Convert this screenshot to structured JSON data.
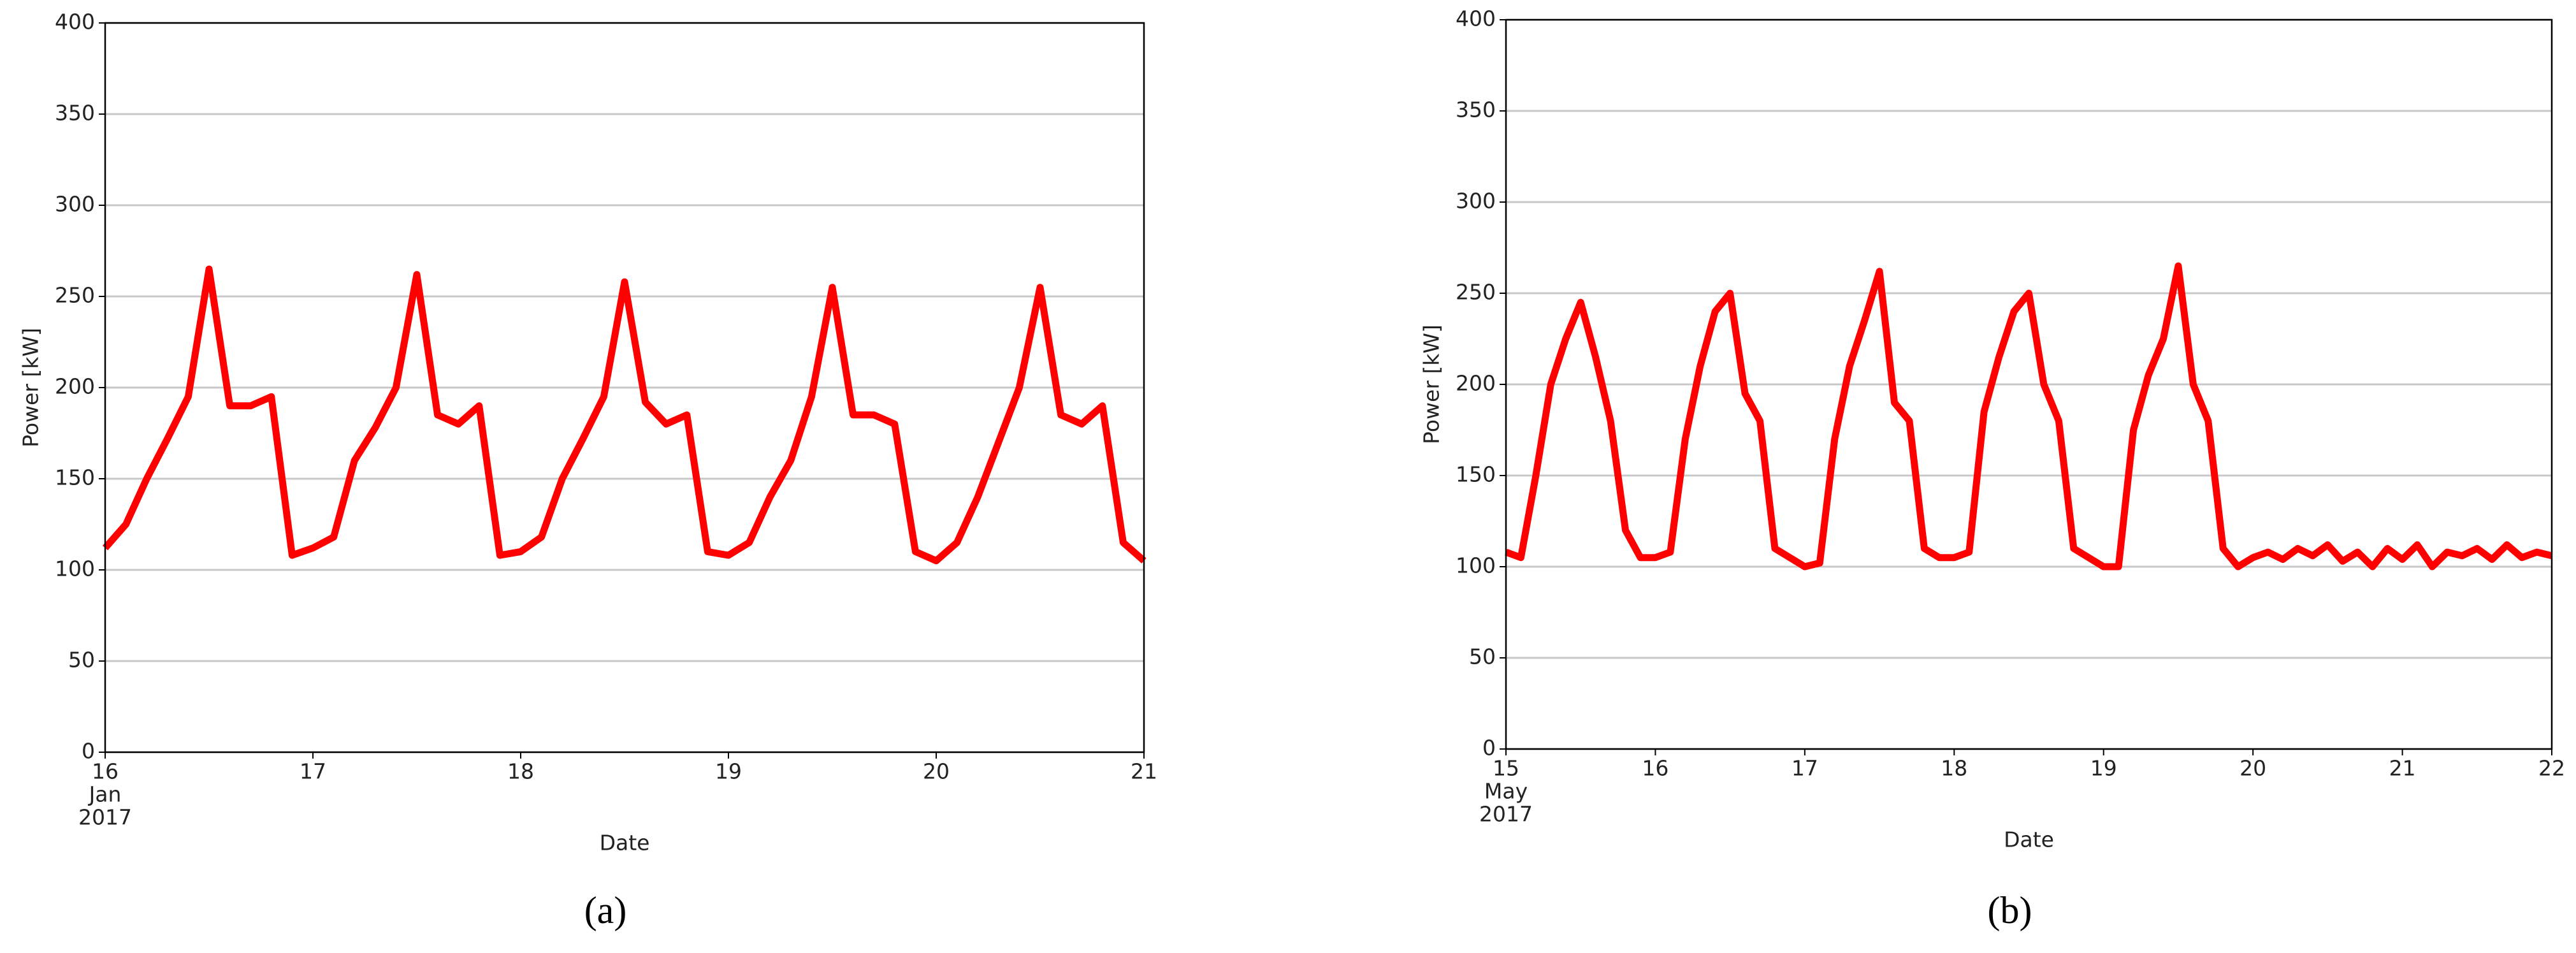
{
  "chart_data": [
    {
      "type": "line",
      "panel_label": "(a)",
      "xlabel": "Date",
      "ylabel": "Power [kW]",
      "xtick_sublabels": [
        "Jan",
        "2017"
      ],
      "xlim": [
        16,
        21
      ],
      "xticks": [
        16,
        17,
        18,
        19,
        20,
        21
      ],
      "ylim": [
        0,
        400
      ],
      "yticks": [
        0,
        50,
        100,
        150,
        200,
        250,
        300,
        350,
        400
      ],
      "grid": true,
      "x": [
        16.0,
        16.1,
        16.2,
        16.3,
        16.4,
        16.5,
        16.6,
        16.7,
        16.8,
        16.9,
        17.0,
        17.1,
        17.2,
        17.3,
        17.4,
        17.5,
        17.6,
        17.7,
        17.8,
        17.9,
        18.0,
        18.1,
        18.2,
        18.3,
        18.4,
        18.5,
        18.6,
        18.7,
        18.8,
        18.9,
        19.0,
        19.1,
        19.2,
        19.3,
        19.4,
        19.5,
        19.6,
        19.7,
        19.8,
        19.9,
        20.0,
        20.1,
        20.2,
        20.3,
        20.4,
        20.5,
        20.6,
        20.7,
        20.8,
        20.9,
        21.0
      ],
      "series": [
        {
          "color": "#ff0000",
          "values": [
            112,
            125,
            150,
            172,
            195,
            265,
            190,
            190,
            195,
            108,
            112,
            118,
            160,
            178,
            200,
            262,
            185,
            180,
            190,
            108,
            110,
            118,
            150,
            172,
            195,
            258,
            192,
            180,
            185,
            110,
            108,
            115,
            140,
            160,
            195,
            255,
            185,
            185,
            180,
            110,
            105,
            115,
            140,
            170,
            200,
            255,
            185,
            180,
            190,
            115,
            105
          ]
        }
      ]
    },
    {
      "type": "line",
      "panel_label": "(b)",
      "xlabel": "Date",
      "ylabel": "Power [kW]",
      "xtick_sublabels": [
        "May",
        "2017"
      ],
      "xlim": [
        15,
        22
      ],
      "xticks": [
        15,
        16,
        17,
        18,
        19,
        20,
        21,
        22
      ],
      "ylim": [
        0,
        400
      ],
      "yticks": [
        0,
        50,
        100,
        150,
        200,
        250,
        300,
        350,
        400
      ],
      "grid": true,
      "x": [
        15.0,
        15.1,
        15.2,
        15.3,
        15.4,
        15.5,
        15.6,
        15.7,
        15.8,
        15.9,
        16.0,
        16.1,
        16.2,
        16.3,
        16.4,
        16.5,
        16.6,
        16.7,
        16.8,
        16.9,
        17.0,
        17.1,
        17.2,
        17.3,
        17.4,
        17.5,
        17.6,
        17.7,
        17.8,
        17.9,
        18.0,
        18.1,
        18.2,
        18.3,
        18.4,
        18.5,
        18.6,
        18.7,
        18.8,
        18.9,
        19.0,
        19.1,
        19.2,
        19.3,
        19.4,
        19.5,
        19.6,
        19.7,
        19.8,
        19.9,
        20.0,
        20.1,
        20.2,
        20.3,
        20.4,
        20.5,
        20.6,
        20.7,
        20.8,
        20.9,
        21.0,
        21.1,
        21.2,
        21.3,
        21.4,
        21.5,
        21.6,
        21.7,
        21.8,
        21.9,
        22.0
      ],
      "series": [
        {
          "color": "#ff0000",
          "values": [
            108,
            105,
            150,
            200,
            225,
            245,
            215,
            180,
            120,
            105,
            105,
            108,
            170,
            210,
            240,
            250,
            195,
            180,
            110,
            105,
            100,
            102,
            170,
            210,
            235,
            262,
            190,
            180,
            110,
            105,
            105,
            108,
            185,
            215,
            240,
            250,
            200,
            180,
            110,
            105,
            100,
            100,
            175,
            205,
            225,
            265,
            200,
            180,
            110,
            100,
            105,
            108,
            104,
            110,
            106,
            112,
            103,
            108,
            100,
            110,
            104,
            112,
            100,
            108,
            106,
            110,
            104,
            112,
            105,
            108,
            106
          ]
        }
      ]
    }
  ]
}
